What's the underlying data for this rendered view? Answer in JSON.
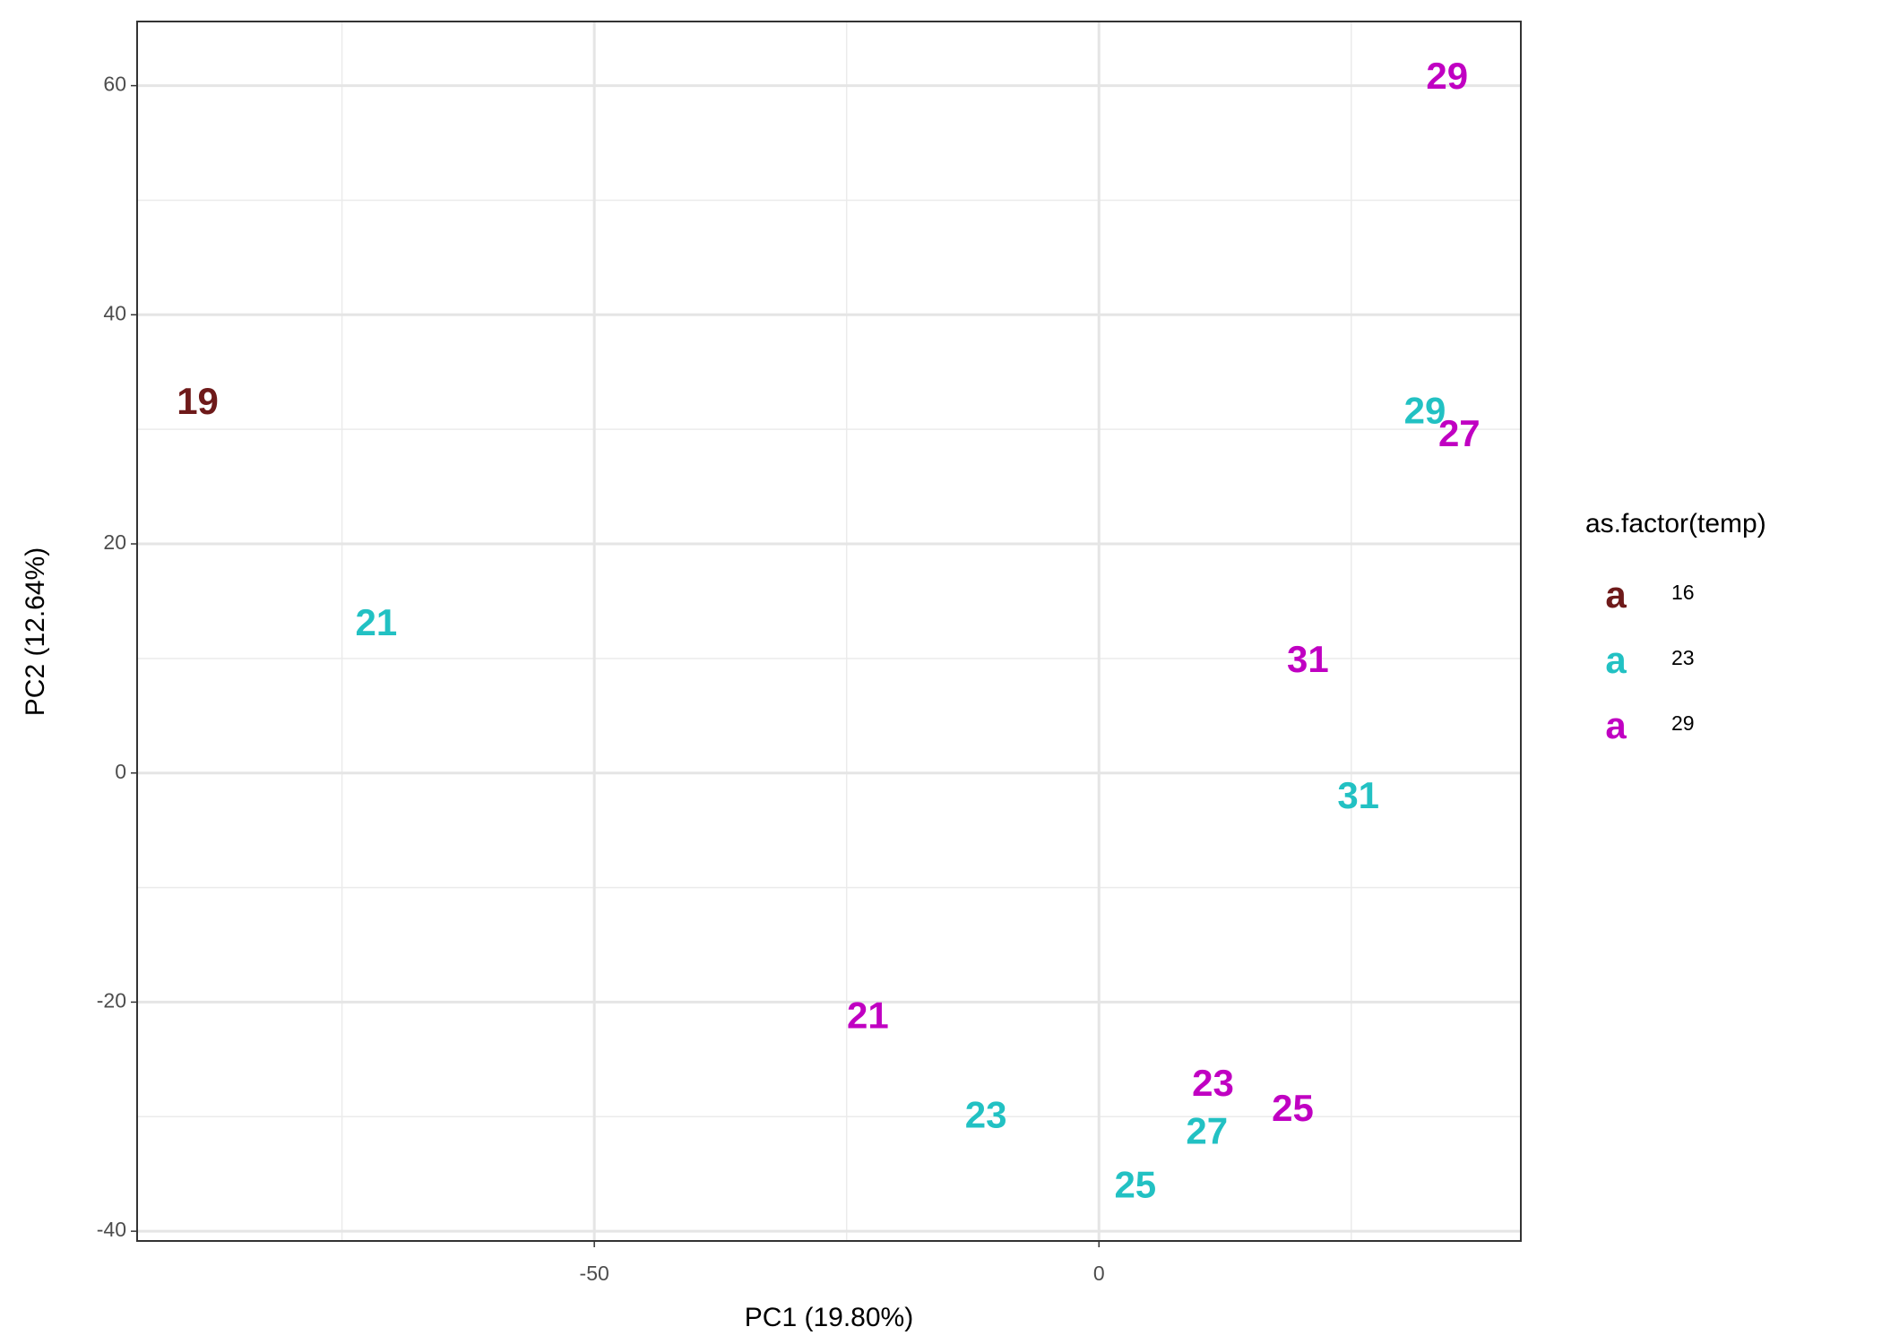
{
  "chart_data": {
    "type": "text-scatter",
    "x_label": "PC1 (19.80%)",
    "y_label": "PC2 (12.64%)",
    "legend_title": "as.factor(temp)",
    "legend_key": "a",
    "xlim": [
      -95.3,
      41.8
    ],
    "ylim": [
      -40.85,
      65.6
    ],
    "xticks": [
      -50,
      0
    ],
    "yticks": [
      -40,
      -20,
      0,
      20,
      40,
      60
    ],
    "x_minor_ticks": [
      -75,
      -25,
      25
    ],
    "y_minor_ticks": [
      -30,
      -10,
      10,
      30,
      50
    ],
    "grid": true,
    "legend": "right",
    "series": [
      {
        "name": "16",
        "color": "#6e1a1a",
        "labels": [
          "19"
        ],
        "x": [
          -89.3
        ],
        "values": [
          32.2
        ]
      },
      {
        "name": "23",
        "color": "#22c1c3",
        "labels": [
          "21",
          "29",
          "31",
          "23",
          "27",
          "25"
        ],
        "x": [
          -71.6,
          32.3,
          25.7,
          -11.2,
          10.7,
          3.6
        ],
        "values": [
          12.9,
          31.4,
          -2.2,
          -30.1,
          -31.5,
          -36.2
        ]
      },
      {
        "name": "29",
        "color": "#c000c2",
        "labels": [
          "29",
          "27",
          "31",
          "21",
          "23",
          "25"
        ],
        "x": [
          34.5,
          35.7,
          20.7,
          -22.9,
          11.3,
          19.2
        ],
        "values": [
          60.6,
          29.4,
          9.7,
          -21.4,
          -27.3,
          -29.5
        ]
      }
    ]
  }
}
